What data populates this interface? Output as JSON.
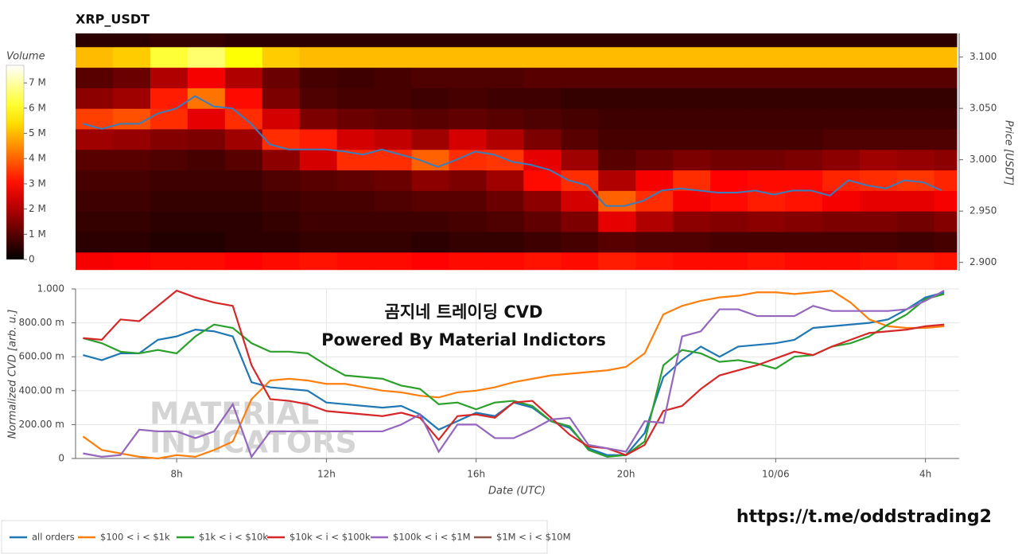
{
  "chart_data": [
    {
      "type": "heatmap",
      "title": "XRP_USDT",
      "colorbar_label": "Volume",
      "zlim": [
        0,
        7.7
      ],
      "zticks": [
        0,
        {
          "value": 1,
          "label": "1 M"
        },
        {
          "value": 2,
          "label": "2 M"
        },
        {
          "value": 3,
          "label": "3 M"
        },
        {
          "value": 4,
          "label": "4 M"
        },
        {
          "value": 5,
          "label": "5 M"
        },
        {
          "value": 6,
          "label": "6 M"
        },
        {
          "value": 7,
          "label": "7 M"
        }
      ],
      "xlim": [
        5.3,
        28.9
      ],
      "x_bins": [
        5.3,
        6.3,
        7.3,
        8.3,
        9.3,
        10.3,
        11.3,
        12.3,
        13.3,
        14.3,
        15.3,
        16.3,
        17.3,
        18.3,
        19.3,
        20.3,
        21.3,
        22.3,
        23.3,
        24.3,
        25.3,
        26.3,
        27.3,
        28.3,
        28.9
      ],
      "y_bins": [
        2.893,
        2.91,
        2.93,
        2.95,
        2.97,
        2.99,
        3.01,
        3.03,
        3.05,
        3.07,
        3.09,
        3.11,
        3.123
      ],
      "z": [
        [
          2.8,
          2.9,
          3,
          3,
          2.9,
          3,
          3.1,
          3,
          3,
          2.9,
          3,
          3,
          3.1,
          3,
          3.2,
          3.1,
          3,
          3,
          3.1,
          3,
          3,
          3.1,
          3.2,
          3.1
        ],
        [
          0.5,
          0.5,
          0.4,
          0.4,
          0.5,
          0.5,
          0.6,
          0.6,
          0.6,
          0.5,
          0.6,
          0.6,
          0.7,
          0.8,
          1,
          0.9,
          0.9,
          0.8,
          0.8,
          0.8,
          0.8,
          0.8,
          0.7,
          0.8
        ],
        [
          0.6,
          0.6,
          0.5,
          0.5,
          0.5,
          0.6,
          0.7,
          0.7,
          0.7,
          0.7,
          0.8,
          0.9,
          1.1,
          1.4,
          2.6,
          2,
          1.6,
          1.5,
          1.6,
          1.5,
          1.4,
          1.4,
          1.3,
          1.5
        ],
        [
          0.7,
          0.7,
          0.6,
          0.6,
          0.6,
          0.7,
          0.8,
          0.8,
          0.9,
          1,
          1,
          1.2,
          1.6,
          2.4,
          4,
          3.4,
          2.8,
          3,
          3.2,
          3.1,
          2.8,
          2.6,
          2.6,
          2.8
        ],
        [
          0.8,
          0.8,
          0.7,
          0.7,
          0.7,
          0.9,
          1,
          1.1,
          1.2,
          1.6,
          1.4,
          1.8,
          3,
          3.4,
          2,
          2.8,
          3.4,
          2.9,
          3,
          3,
          3.3,
          3.4,
          3.5,
          3.3
        ],
        [
          1,
          1,
          0.9,
          0.8,
          1,
          1.6,
          2.4,
          3.4,
          3.4,
          4,
          3.4,
          3.5,
          2.6,
          1.8,
          1,
          1.2,
          1.4,
          1.3,
          1.3,
          1.4,
          1.6,
          1.8,
          1.7,
          1.6
        ],
        [
          1.8,
          1.7,
          1.5,
          1.4,
          1.8,
          3.4,
          3.2,
          2.4,
          2.2,
          1.8,
          2.4,
          2,
          1.4,
          1,
          0.8,
          0.8,
          0.8,
          0.8,
          0.8,
          0.8,
          0.9,
          0.9,
          0.9,
          0.9
        ],
        [
          3.6,
          3.8,
          3.4,
          2.6,
          3.4,
          2.4,
          1.4,
          1.2,
          1.1,
          1,
          1.1,
          1,
          0.9,
          0.8,
          0.7,
          0.7,
          0.7,
          0.7,
          0.7,
          0.7,
          0.7,
          0.7,
          0.7,
          0.7
        ],
        [
          1.6,
          1.8,
          3.2,
          4.2,
          3,
          1.4,
          0.9,
          0.8,
          0.8,
          0.7,
          0.8,
          0.7,
          0.7,
          0.6,
          0.6,
          0.6,
          0.6,
          0.6,
          0.6,
          0.6,
          0.6,
          0.6,
          0.6,
          0.6
        ],
        [
          1,
          1.2,
          2,
          2.8,
          2,
          1.2,
          0.8,
          0.7,
          0.8,
          0.9,
          0.9,
          0.9,
          1,
          1,
          1,
          1,
          1,
          1,
          1,
          1,
          1,
          1,
          1,
          1
        ],
        [
          5,
          5.2,
          6.2,
          6.6,
          5.8,
          5.2,
          5,
          5,
          5,
          5,
          5,
          5,
          5,
          5,
          5,
          5,
          5,
          5,
          5,
          5,
          5,
          5,
          5,
          5
        ],
        [
          0.5,
          0.5,
          0.6,
          0.6,
          0.5,
          0.5,
          0.5,
          0.5,
          0.5,
          0.5,
          0.5,
          0.5,
          0.5,
          0.5,
          0.5,
          0.5,
          0.5,
          0.5,
          0.5,
          0.5,
          0.5,
          0.5,
          0.5,
          0.5
        ]
      ],
      "y2label": "Price [USDT]",
      "y2lim": [
        2.892,
        3.123
      ],
      "y2ticks": [
        {
          "value": 2.9,
          "label": "2.900"
        },
        {
          "value": 2.95,
          "label": "2.950"
        },
        {
          "value": 3,
          "label": "3.000"
        },
        {
          "value": 3.05,
          "label": "3.050"
        },
        {
          "value": 3.1,
          "label": "3.100"
        }
      ],
      "x": [
        5.5,
        6,
        6.5,
        7,
        7.5,
        8,
        8.5,
        9,
        9.5,
        10,
        10.5,
        11,
        11.5,
        12,
        12.5,
        13,
        13.5,
        14,
        14.5,
        15,
        15.5,
        16,
        16.5,
        17,
        17.5,
        18,
        18.5,
        19,
        19.5,
        20,
        20.5,
        21,
        21.5,
        22,
        22.5,
        23,
        23.5,
        24,
        24.5,
        25,
        25.5,
        26,
        26.5,
        27,
        27.5,
        28,
        28.5
      ],
      "series": [
        {
          "color": "#3a7dbd",
          "axis": "y2",
          "values": [
            3.035,
            3.03,
            3.035,
            3.035,
            3.045,
            3.05,
            3.062,
            3.052,
            3.05,
            3.035,
            3.015,
            3.01,
            3.01,
            3.01,
            3.008,
            3.005,
            3.01,
            3.005,
            3,
            2.993,
            3,
            3.008,
            3.005,
            2.998,
            2.995,
            2.99,
            2.98,
            2.975,
            2.955,
            2.955,
            2.96,
            2.97,
            2.972,
            2.97,
            2.968,
            2.968,
            2.97,
            2.966,
            2.97,
            2.97,
            2.965,
            2.98,
            2.975,
            2.972,
            2.98,
            2.978,
            2.97
          ]
        }
      ]
    },
    {
      "type": "line",
      "xlabel": "Date (UTC)",
      "ylabel": "Normalized CVD [arb. u.]",
      "annotations": [
        "곰지네 트레이딩 CVD",
        "Powered By Material Indictors"
      ],
      "watermark": [
        "MATERIAL",
        "INDICATORS"
      ],
      "grid": true,
      "legend": "bottom-left",
      "xlim": [
        5.3,
        28.9
      ],
      "xticks": [
        {
          "value": 8,
          "label": "8h"
        },
        {
          "value": 12,
          "label": "12h"
        },
        {
          "value": 16,
          "label": "16h"
        },
        {
          "value": 20,
          "label": "20h"
        },
        {
          "value": 24,
          "label": "10/06"
        },
        {
          "value": 28,
          "label": "4h"
        }
      ],
      "ylim": [
        0,
        1
      ],
      "yticks": [
        0,
        {
          "value": 0.2,
          "label": "200.00 m"
        },
        {
          "value": 0.4,
          "label": "400.00 m"
        },
        {
          "value": 0.6,
          "label": "600.00 m"
        },
        {
          "value": 0.8,
          "label": "800.00 m"
        },
        {
          "value": 1,
          "label": "1.000"
        }
      ],
      "x": [
        5.5,
        6,
        6.5,
        7,
        7.5,
        8,
        8.5,
        9,
        9.5,
        10,
        10.5,
        11,
        11.5,
        12,
        12.5,
        13,
        13.5,
        14,
        14.5,
        15,
        15.5,
        16,
        16.5,
        17,
        17.5,
        18,
        18.5,
        19,
        19.5,
        20,
        20.5,
        21,
        21.5,
        22,
        22.5,
        23,
        23.5,
        24,
        24.5,
        25,
        25.5,
        26,
        26.5,
        27,
        27.5,
        28,
        28.5
      ],
      "series": [
        {
          "name": "all orders",
          "color": "#1f77b4",
          "values": [
            0.61,
            0.58,
            0.62,
            0.62,
            0.7,
            0.72,
            0.76,
            0.75,
            0.72,
            0.45,
            0.42,
            0.41,
            0.4,
            0.33,
            0.32,
            0.31,
            0.3,
            0.31,
            0.26,
            0.17,
            0.22,
            0.27,
            0.25,
            0.33,
            0.3,
            0.22,
            0.18,
            0.06,
            0.02,
            0.02,
            0.15,
            0.48,
            0.58,
            0.66,
            0.6,
            0.66,
            0.67,
            0.68,
            0.7,
            0.77,
            0.78,
            0.79,
            0.8,
            0.82,
            0.88,
            0.95,
            0.98
          ]
        },
        {
          "name": "$100 < i < $1k",
          "color": "#ff7f0e",
          "values": [
            0.13,
            0.05,
            0.03,
            0.01,
            0,
            0.02,
            0.01,
            0.05,
            0.1,
            0.35,
            0.46,
            0.47,
            0.46,
            0.44,
            0.44,
            0.42,
            0.4,
            0.39,
            0.37,
            0.36,
            0.39,
            0.4,
            0.42,
            0.45,
            0.47,
            0.49,
            0.5,
            0.51,
            0.52,
            0.54,
            0.62,
            0.85,
            0.9,
            0.93,
            0.95,
            0.96,
            0.98,
            0.98,
            0.97,
            0.98,
            0.99,
            0.92,
            0.82,
            0.78,
            0.77,
            0.77,
            0.78
          ]
        },
        {
          "name": "$1k < i < $10k",
          "color": "#2ca02c",
          "values": [
            0.71,
            0.68,
            0.63,
            0.62,
            0.64,
            0.62,
            0.72,
            0.79,
            0.77,
            0.68,
            0.63,
            0.63,
            0.62,
            0.55,
            0.49,
            0.48,
            0.47,
            0.43,
            0.41,
            0.32,
            0.33,
            0.29,
            0.33,
            0.34,
            0.31,
            0.22,
            0.19,
            0.05,
            0.01,
            0.02,
            0.1,
            0.55,
            0.64,
            0.62,
            0.57,
            0.58,
            0.56,
            0.53,
            0.6,
            0.61,
            0.66,
            0.68,
            0.72,
            0.79,
            0.85,
            0.94,
            0.97
          ]
        },
        {
          "name": "$10k < i < $100k",
          "color": "#d62728",
          "values": [
            0.71,
            0.7,
            0.82,
            0.81,
            0.9,
            0.99,
            0.95,
            0.92,
            0.9,
            0.55,
            0.35,
            0.34,
            0.32,
            0.28,
            0.27,
            0.26,
            0.25,
            0.27,
            0.24,
            0.11,
            0.25,
            0.26,
            0.24,
            0.33,
            0.34,
            0.24,
            0.14,
            0.07,
            0.06,
            0.02,
            0.08,
            0.28,
            0.31,
            0.41,
            0.49,
            0.52,
            0.55,
            0.59,
            0.63,
            0.61,
            0.66,
            0.7,
            0.74,
            0.75,
            0.76,
            0.78,
            0.79
          ]
        },
        {
          "name": "$100k < i < $1M",
          "color": "#9467bd",
          "values": [
            0.03,
            0.01,
            0.02,
            0.17,
            0.16,
            0.16,
            0.12,
            0.16,
            0.32,
            0.01,
            0.16,
            0.16,
            0.16,
            0.16,
            0.16,
            0.16,
            0.16,
            0.2,
            0.26,
            0.04,
            0.2,
            0.2,
            0.12,
            0.12,
            0.17,
            0.23,
            0.24,
            0.08,
            0.06,
            0.04,
            0.22,
            0.21,
            0.72,
            0.75,
            0.88,
            0.88,
            0.84,
            0.84,
            0.84,
            0.9,
            0.87,
            0.87,
            0.87,
            0.87,
            0.88,
            0.93,
            0.99
          ]
        },
        {
          "name": "$1M < i < $10M",
          "color": "#8c564b",
          "values": [
            null,
            null,
            null,
            null,
            null,
            null,
            null,
            null,
            null,
            null,
            null,
            null,
            null,
            null,
            null,
            null,
            null,
            null,
            null,
            null,
            null,
            null,
            null,
            null,
            null,
            null,
            null,
            null,
            null,
            null,
            null,
            null,
            null,
            null,
            null,
            null,
            null,
            null,
            null,
            null,
            null,
            null,
            null,
            null,
            null,
            null,
            null
          ]
        }
      ]
    }
  ],
  "footer_link": "https://t.me/oddstrading2"
}
